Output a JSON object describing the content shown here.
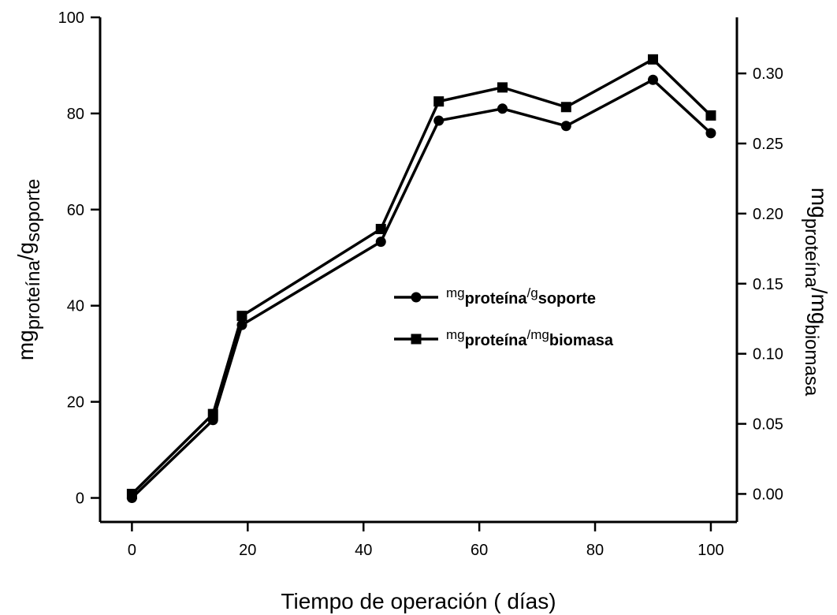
{
  "chart_data": {
    "type": "line",
    "x_label": "Tiempo de operación ( días)",
    "y_label": [
      "mg",
      "proteína",
      "/g",
      "soporte"
    ],
    "y2_label": [
      "mg",
      "proteína",
      "/mg",
      "biomasa"
    ],
    "x": [
      0,
      14,
      19,
      43,
      53,
      64,
      75,
      90,
      100
    ],
    "series": [
      {
        "name": [
          "mg",
          "proteína",
          "/g",
          "soporte"
        ],
        "color": "#000000",
        "marker": "circle",
        "axis": "y",
        "values": [
          0,
          16.2,
          36,
          53.3,
          78.5,
          81,
          77.4,
          87,
          75.9
        ]
      },
      {
        "name": [
          "mg",
          "proteína",
          "/mg",
          "biomasa"
        ],
        "color": "#000000",
        "marker": "square",
        "axis": "y2",
        "values": [
          0,
          0.057,
          0.127,
          0.189,
          0.28,
          0.29,
          0.276,
          0.31,
          0.27
        ]
      }
    ],
    "xlim": [
      -5.5,
      104.5
    ],
    "xticks": [
      0,
      20,
      40,
      60,
      80,
      100
    ],
    "ylim": [
      -5,
      100
    ],
    "yticks": [
      0,
      20,
      40,
      60,
      80,
      100
    ],
    "y2lim": [
      -0.02,
      0.34
    ],
    "y2ticks": [
      {
        "value": 0,
        "label": "0.00"
      },
      {
        "value": 0.05,
        "label": "0.05"
      },
      {
        "value": 0.1,
        "label": "0.10"
      },
      {
        "value": 0.15,
        "label": "0.15"
      },
      {
        "value": 0.2,
        "label": "0.20"
      },
      {
        "value": 0.25,
        "label": "0.25"
      },
      {
        "value": 0.3,
        "label": "0.30"
      }
    ],
    "grid": false
  }
}
